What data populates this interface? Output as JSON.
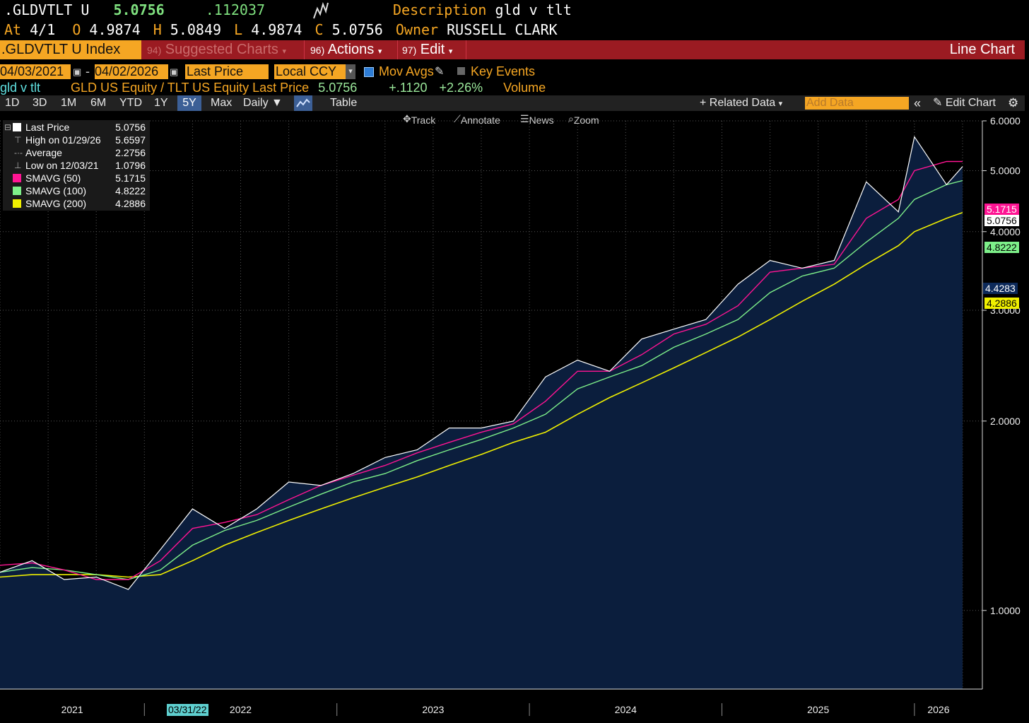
{
  "header": {
    "ticker": ".GLDVTLT U",
    "last_price": "5.0756",
    "change": ".112037",
    "sparkline_icon": "mini-chart-icon",
    "description_label": "Description",
    "description_value": "gld v tlt",
    "at_label": "At",
    "at_value": "4/1",
    "open_label": "O",
    "open_value": "4.9874",
    "high_label": "H",
    "high_value": "5.0849",
    "low_label": "L",
    "low_value": "4.9874",
    "close_label": "C",
    "close_value": "5.0756",
    "owner_label": "Owner",
    "owner_value": "RUSSELL CLARK"
  },
  "menubar": {
    "security": ".GLDVTLT U Index",
    "suggested_num": "94)",
    "suggested_label": "Suggested Charts",
    "actions_num": "96)",
    "actions_label": "Actions",
    "edit_num": "97)",
    "edit_label": "Edit",
    "view_label": "Line Chart"
  },
  "controls": {
    "start_date": "04/03/2021",
    "date_sep": "-",
    "end_date": "04/02/2026",
    "field": "Last Price",
    "currency": "Local CCY",
    "mov_avgs_label": "Mov Avgs",
    "mov_avgs_checked": true,
    "key_events_label": "Key Events",
    "key_events_checked": false
  },
  "series_row": {
    "name": "gld v tlt",
    "desc": "GLD US Equity / TLT US Equity Last Price",
    "value": "5.0756",
    "change": "+.1120",
    "change_pct": "+2.26%",
    "volume_label": "Volume"
  },
  "toolbar": {
    "periods": [
      "1D",
      "3D",
      "1M",
      "6M",
      "YTD",
      "1Y",
      "5Y",
      "Max"
    ],
    "selected_period": "5Y",
    "frequency": "Daily",
    "table_label": "Table",
    "related_data": "Related Data",
    "add_data_placeholder": "Add Data",
    "edit_chart": "Edit Chart"
  },
  "chart_tools": {
    "track": "Track",
    "annotate": "Annotate",
    "news": "News",
    "zoom": "Zoom"
  },
  "legend": {
    "last_price_label": "Last Price",
    "last_price_value": "5.0756",
    "high_label": "High on 01/29/26",
    "high_value": "5.6597",
    "average_label": "Average",
    "average_value": "2.2756",
    "low_label": "Low on 12/03/21",
    "low_value": "1.0796",
    "sma50_label": "SMAVG (50)",
    "sma50_value": "5.1715",
    "sma100_label": "SMAVG (100)",
    "sma100_value": "4.8222",
    "sma200_label": "SMAVG (200)",
    "sma200_value": "4.2886"
  },
  "flags": {
    "sma50": "5.1715",
    "last": "5.0756",
    "sma100": "4.8222",
    "crosshair": "4.4283",
    "sma200": "4.2886"
  },
  "cursor_date": "03/31/22",
  "colors": {
    "price": "#ffffff",
    "sma50": "#ff1493",
    "sma100": "#7ef08a",
    "sma200": "#f0f000",
    "area": "#0b1e3d",
    "amber": "#f5a623",
    "menubar": "#9b1b22"
  },
  "chart_data": {
    "type": "line",
    "title": "gld v tlt",
    "y_scale": "log",
    "ylim": [
      0.75,
      6.0
    ],
    "y_ticks": [
      "1.0000",
      "2.0000",
      "3.0000",
      "4.0000",
      "5.0000",
      "6.0000"
    ],
    "x_labels": [
      "2021",
      "2022",
      "2023",
      "2024",
      "2025",
      "2026"
    ],
    "grid": true,
    "legend_position": "top-left",
    "x": [
      "2021-04",
      "2021-06",
      "2021-08",
      "2021-10",
      "2021-12",
      "2022-02",
      "2022-04",
      "2022-06",
      "2022-08",
      "2022-10",
      "2022-12",
      "2023-02",
      "2023-04",
      "2023-06",
      "2023-08",
      "2023-10",
      "2023-12",
      "2024-02",
      "2024-04",
      "2024-06",
      "2024-08",
      "2024-10",
      "2024-12",
      "2025-02",
      "2025-04",
      "2025-06",
      "2025-08",
      "2025-10",
      "2025-12",
      "2026-01",
      "2026-03",
      "2026-04"
    ],
    "series": [
      {
        "name": "Last Price",
        "values": [
          1.15,
          1.2,
          1.12,
          1.13,
          1.08,
          1.25,
          1.45,
          1.35,
          1.45,
          1.6,
          1.58,
          1.65,
          1.75,
          1.8,
          1.95,
          1.95,
          2.0,
          2.35,
          2.5,
          2.4,
          2.7,
          2.8,
          2.9,
          3.3,
          3.6,
          3.5,
          3.6,
          4.8,
          4.3,
          5.66,
          4.75,
          5.0756
        ]
      },
      {
        "name": "SMAVG (50)",
        "values": [
          1.18,
          1.19,
          1.16,
          1.12,
          1.12,
          1.2,
          1.35,
          1.38,
          1.42,
          1.5,
          1.58,
          1.64,
          1.7,
          1.78,
          1.85,
          1.92,
          1.98,
          2.15,
          2.4,
          2.4,
          2.55,
          2.75,
          2.85,
          3.05,
          3.45,
          3.5,
          3.55,
          4.2,
          4.5,
          5.0,
          5.1715,
          5.1715
        ]
      },
      {
        "name": "SMAVG (100)",
        "values": [
          1.15,
          1.17,
          1.16,
          1.14,
          1.12,
          1.16,
          1.27,
          1.34,
          1.39,
          1.46,
          1.53,
          1.6,
          1.65,
          1.73,
          1.8,
          1.87,
          1.95,
          2.05,
          2.25,
          2.35,
          2.45,
          2.62,
          2.75,
          2.9,
          3.2,
          3.4,
          3.5,
          3.85,
          4.2,
          4.5,
          4.75,
          4.8222
        ]
      },
      {
        "name": "SMAVG (200)",
        "values": [
          1.13,
          1.14,
          1.14,
          1.14,
          1.13,
          1.14,
          1.2,
          1.27,
          1.33,
          1.39,
          1.45,
          1.51,
          1.57,
          1.63,
          1.7,
          1.77,
          1.85,
          1.92,
          2.05,
          2.18,
          2.3,
          2.43,
          2.57,
          2.72,
          2.9,
          3.1,
          3.3,
          3.55,
          3.8,
          4.0,
          4.2,
          4.2886
        ]
      }
    ]
  }
}
